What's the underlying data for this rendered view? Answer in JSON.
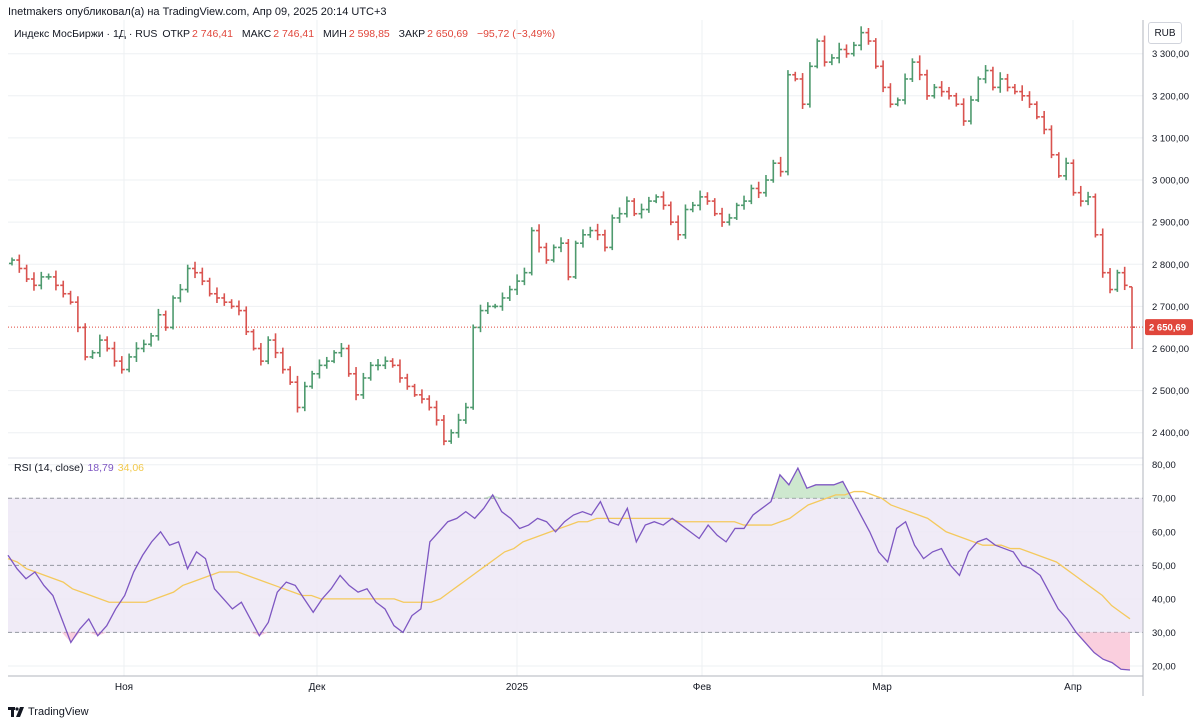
{
  "header": {
    "text": "Inetmakers опубликовал(а) на TradingView.com, Апр 09, 2025 20:14 UTC+3"
  },
  "legend": {
    "title": "Индекс МосБиржи · 1Д · RUS",
    "open_label": "ОТКР",
    "open": "2 746,41",
    "high_label": "МАКС",
    "high": "2 746,41",
    "low_label": "МИН",
    "low": "2 598,85",
    "close_label": "ЗАКР",
    "close": "2 650,69",
    "change": "−95,72 (−3,49%)"
  },
  "currency": "RUB",
  "rsi_legend": {
    "title": "RSI (14, close)",
    "rsi": "18,79",
    "ma": "34,06"
  },
  "footer": {
    "brand": "TradingView"
  },
  "colors": {
    "up": "#26a69a",
    "up_bar": "#4e9a6e",
    "down": "#d9534f",
    "rsi": "#7e57c2",
    "rsi_ma": "#f4c95d",
    "band": "#ede7f6"
  },
  "chart_data": [
    {
      "type": "ohlc",
      "x_tick_labels": [
        "Ноя",
        "Дек",
        "2025",
        "Фев",
        "Мар",
        "Апр"
      ],
      "y_ticks": [
        2400,
        2500,
        2600,
        2700,
        2800,
        2900,
        3000,
        3100,
        3200,
        3300
      ],
      "y_tick_labels": [
        "2 400,00",
        "2 500,00",
        "2 600,00",
        "2 700,00",
        "2 800,00",
        "2 900,00",
        "3 000,00",
        "3 100,00",
        "3 200,00",
        "3 300,00"
      ],
      "ylim": [
        2340,
        3380
      ],
      "last_price": 2650.69,
      "last_price_label": "2 650,69",
      "closes": [
        2810,
        2790,
        2765,
        2750,
        2770,
        2770,
        2750,
        2730,
        2710,
        2650,
        2580,
        2590,
        2620,
        2600,
        2570,
        2550,
        2580,
        2600,
        2610,
        2630,
        2680,
        2650,
        2720,
        2740,
        2790,
        2780,
        2760,
        2730,
        2720,
        2710,
        2700,
        2690,
        2640,
        2600,
        2570,
        2620,
        2590,
        2550,
        2520,
        2460,
        2510,
        2540,
        2560,
        2570,
        2590,
        2600,
        2540,
        2490,
        2530,
        2560,
        2560,
        2570,
        2560,
        2530,
        2510,
        2490,
        2480,
        2460,
        2430,
        2380,
        2400,
        2430,
        2460,
        2650,
        2690,
        2700,
        2700,
        2720,
        2740,
        2760,
        2780,
        2880,
        2840,
        2810,
        2840,
        2850,
        2770,
        2850,
        2870,
        2880,
        2870,
        2840,
        2910,
        2920,
        2950,
        2920,
        2930,
        2950,
        2960,
        2940,
        2900,
        2870,
        2930,
        2940,
        2960,
        2950,
        2920,
        2900,
        2910,
        2940,
        2950,
        2980,
        2970,
        3000,
        3040,
        3020,
        3250,
        3240,
        3180,
        3270,
        3330,
        3280,
        3290,
        3310,
        3300,
        3320,
        3350,
        3330,
        3270,
        3220,
        3180,
        3190,
        3240,
        3280,
        3250,
        3200,
        3220,
        3210,
        3200,
        3180,
        3140,
        3190,
        3240,
        3260,
        3220,
        3240,
        3220,
        3210,
        3200,
        3180,
        3150,
        3120,
        3060,
        3010,
        3040,
        2970,
        2950,
        2960,
        2870,
        2780,
        2740,
        2780,
        2750,
        2650.69
      ]
    },
    {
      "type": "line",
      "title": "RSI (14, close)",
      "ylim": [
        17,
        82
      ],
      "y_ticks": [
        20,
        30,
        40,
        50,
        60,
        70,
        80
      ],
      "y_tick_labels": [
        "20,00",
        "30,00",
        "40,00",
        "50,00",
        "60,00",
        "70,00",
        "80,00"
      ],
      "band": [
        30,
        70
      ],
      "mid_line": 50,
      "series": [
        {
          "values": [
            53,
            49,
            46,
            48,
            44,
            41,
            34,
            27,
            31,
            34,
            29,
            32,
            37,
            41,
            48,
            53,
            57,
            60,
            56,
            57,
            49,
            54,
            52,
            43,
            40,
            37,
            39,
            34,
            29,
            33,
            42,
            45,
            44,
            40,
            36,
            40,
            43,
            47,
            44,
            42,
            43,
            39,
            37,
            32,
            30,
            35,
            37,
            57,
            60,
            63,
            64,
            66,
            64,
            67,
            71,
            66,
            64,
            61,
            62,
            64,
            63,
            60,
            63,
            65,
            66,
            65,
            69,
            63,
            62,
            67,
            57,
            62,
            63,
            62,
            64,
            62,
            60,
            58,
            62,
            59,
            57,
            61,
            61,
            65,
            67,
            69,
            77,
            74,
            79,
            73,
            74,
            74,
            74,
            75,
            70,
            65,
            60,
            54,
            51,
            61,
            63,
            56,
            52,
            54,
            55,
            50,
            47,
            54,
            57,
            58,
            56,
            55,
            54,
            50,
            49,
            47,
            42,
            37,
            34,
            30,
            27,
            24,
            22,
            21,
            19,
            18.79
          ]
        },
        {
          "values": [
            52,
            51,
            49,
            48,
            47,
            46,
            45,
            43,
            42,
            41,
            40,
            39,
            39,
            39,
            39,
            39,
            40,
            41,
            42,
            44,
            45,
            46,
            47,
            48,
            48,
            48,
            47,
            46,
            45,
            44,
            43,
            42,
            41,
            41,
            40,
            40,
            40,
            40,
            40,
            40,
            40,
            40,
            40,
            39,
            39,
            39,
            39,
            40,
            42,
            44,
            46,
            48,
            50,
            52,
            54,
            55,
            57,
            58,
            59,
            60,
            61,
            62,
            63,
            63,
            64,
            64,
            64,
            64,
            64,
            64,
            64,
            64,
            64,
            63,
            63,
            63,
            63,
            63,
            63,
            63,
            62,
            62,
            62,
            62,
            63,
            64,
            66,
            68,
            69,
            70,
            71,
            71,
            72,
            72,
            71,
            70,
            68,
            67,
            66,
            65,
            64,
            62,
            60,
            59,
            58,
            57,
            56,
            56,
            56,
            55,
            55,
            54,
            53,
            52,
            51,
            49,
            47,
            45,
            43,
            41,
            38,
            36,
            34.06
          ]
        }
      ]
    }
  ]
}
